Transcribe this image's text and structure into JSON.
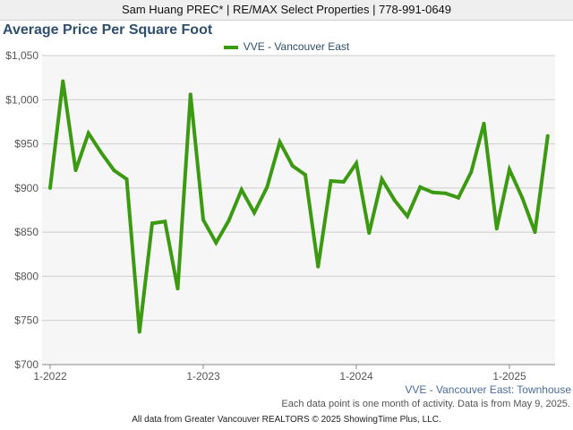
{
  "header": {
    "agent": "Sam Huang PREC* | RE/MAX Select Properties | 778-991-0649"
  },
  "chart_data": {
    "type": "line",
    "title": "Average Price Per Square Foot",
    "subtitle": "VVE - Vancouver East: Townhouse",
    "xlabel": "",
    "ylabel": "",
    "ylim": [
      700,
      1050
    ],
    "yticks": [
      "$700",
      "$750",
      "$800",
      "$850",
      "$900",
      "$950",
      "$1,000",
      "$1,050"
    ],
    "xticks": [
      "1-2022",
      "1-2023",
      "1-2024",
      "1-2025"
    ],
    "x_start": "2022-01",
    "x_end": "2025-04",
    "grid": true,
    "legend_position": "top-center",
    "colors": {
      "series": "#3c9a12",
      "grid": "#cccccc",
      "background": "#f6f6f6"
    },
    "series": [
      {
        "name": "VVE - Vancouver East",
        "x": [
          "2022-01",
          "2022-02",
          "2022-03",
          "2022-04",
          "2022-05",
          "2022-06",
          "2022-07",
          "2022-08",
          "2022-09",
          "2022-10",
          "2022-11",
          "2022-12",
          "2023-01",
          "2023-02",
          "2023-03",
          "2023-04",
          "2023-05",
          "2023-06",
          "2023-07",
          "2023-08",
          "2023-09",
          "2023-10",
          "2023-11",
          "2023-12",
          "2024-01",
          "2024-02",
          "2024-03",
          "2024-04",
          "2024-05",
          "2024-06",
          "2024-07",
          "2024-08",
          "2024-09",
          "2024-10",
          "2024-11",
          "2024-12",
          "2025-01",
          "2025-02",
          "2025-03",
          "2025-04"
        ],
        "values": [
          900,
          1021,
          920,
          962,
          940,
          920,
          910,
          737,
          860,
          862,
          786,
          1006,
          864,
          838,
          863,
          898,
          872,
          901,
          952,
          925,
          915,
          811,
          908,
          907,
          928,
          849,
          910,
          886,
          868,
          901,
          895,
          894,
          889,
          918,
          973,
          854,
          921,
          889,
          850,
          959
        ]
      }
    ]
  },
  "note": "Each data point is one month of activity. Data is from May 9, 2025.",
  "footer": "All data from Greater Vancouver REALTORS © 2025 ShowingTime Plus, LLC."
}
